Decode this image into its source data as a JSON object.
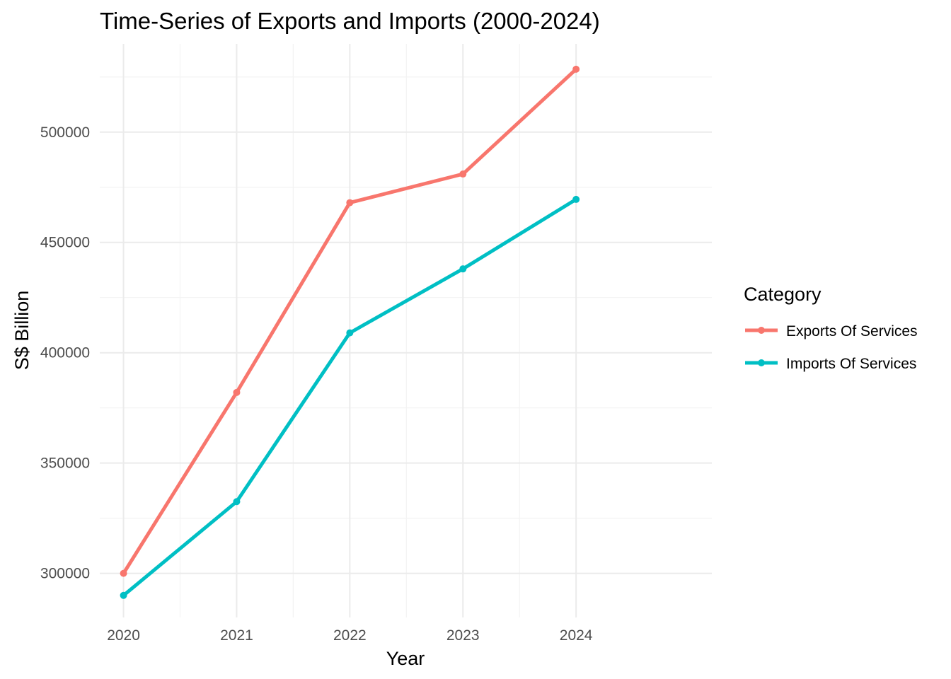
{
  "chart_data": {
    "type": "line",
    "title": "Time-Series of Exports and Imports (2000-2024)",
    "xlabel": "Year",
    "ylabel": "S$ Billion",
    "x": [
      2020,
      2021,
      2022,
      2023,
      2024
    ],
    "x_tick_labels": [
      "2020",
      "2021",
      "2022",
      "2023",
      "2024"
    ],
    "y_ticks": [
      300000,
      350000,
      400000,
      450000,
      500000
    ],
    "y_tick_labels": [
      "300000",
      "350000",
      "400000",
      "450000",
      "500000"
    ],
    "xlim": [
      2019.79,
      2025.2
    ],
    "ylim": [
      280000,
      540000
    ],
    "grid": true,
    "legend": {
      "title": "Category",
      "placement": "right"
    },
    "series": [
      {
        "name": "Exports Of Services",
        "color": "#F8766D",
        "values": [
          300000,
          382000,
          468000,
          481000,
          528500
        ]
      },
      {
        "name": "Imports Of Services",
        "color": "#00BFC4",
        "values": [
          290000,
          332500,
          409000,
          438000,
          469500
        ]
      }
    ]
  }
}
